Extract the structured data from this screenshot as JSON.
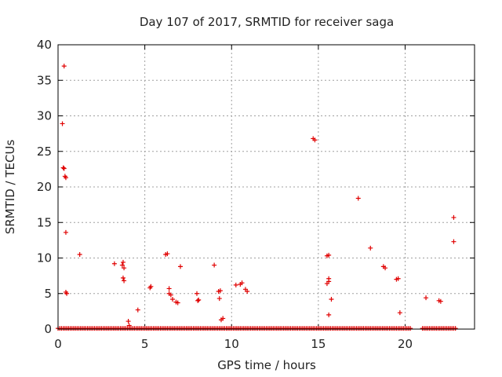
{
  "chart_data": {
    "type": "scatter",
    "title": "Day 107 of 2017, SRMTID for receiver saga",
    "xlabel": "GPS time / hours",
    "ylabel": "SRMTID / TECUs",
    "xlim": [
      0,
      24
    ],
    "ylim": [
      0,
      40
    ],
    "x_ticks": [
      0,
      5,
      10,
      15,
      20
    ],
    "y_ticks": [
      0,
      5,
      10,
      15,
      20,
      25,
      30,
      35,
      40
    ],
    "grid": true,
    "marker": "+",
    "color": "#e00000",
    "series": [
      {
        "name": "SRMTID",
        "points": [
          [
            0.25,
            28.9
          ],
          [
            0.35,
            37.0
          ],
          [
            0.3,
            22.7
          ],
          [
            0.35,
            22.6
          ],
          [
            0.4,
            21.5
          ],
          [
            0.45,
            21.3
          ],
          [
            0.45,
            13.6
          ],
          [
            0.45,
            5.2
          ],
          [
            0.5,
            5.0
          ],
          [
            1.25,
            10.5
          ],
          [
            3.25,
            9.2
          ],
          [
            3.75,
            9.4
          ],
          [
            3.7,
            9.0
          ],
          [
            3.8,
            8.6
          ],
          [
            3.75,
            7.2
          ],
          [
            3.8,
            6.8
          ],
          [
            4.05,
            1.1
          ],
          [
            4.1,
            0.5
          ],
          [
            4.6,
            2.7
          ],
          [
            5.3,
            5.8
          ],
          [
            5.35,
            6.0
          ],
          [
            6.2,
            10.5
          ],
          [
            6.3,
            10.6
          ],
          [
            6.4,
            5.7
          ],
          [
            6.4,
            5.0
          ],
          [
            6.5,
            4.8
          ],
          [
            6.6,
            4.2
          ],
          [
            6.8,
            3.8
          ],
          [
            6.9,
            3.7
          ],
          [
            7.05,
            8.8
          ],
          [
            8.0,
            5.0
          ],
          [
            8.05,
            4.0
          ],
          [
            8.1,
            4.1
          ],
          [
            9.0,
            9.0
          ],
          [
            9.25,
            5.3
          ],
          [
            9.35,
            5.4
          ],
          [
            9.3,
            4.3
          ],
          [
            9.4,
            1.3
          ],
          [
            9.5,
            1.5
          ],
          [
            10.25,
            6.2
          ],
          [
            10.5,
            6.3
          ],
          [
            10.6,
            6.5
          ],
          [
            10.8,
            5.6
          ],
          [
            10.9,
            5.3
          ],
          [
            14.7,
            26.8
          ],
          [
            14.8,
            26.6
          ],
          [
            15.5,
            10.3
          ],
          [
            15.6,
            10.4
          ],
          [
            15.5,
            6.4
          ],
          [
            15.6,
            6.7
          ],
          [
            15.6,
            7.1
          ],
          [
            15.6,
            2.0
          ],
          [
            15.75,
            4.2
          ],
          [
            17.3,
            18.4
          ],
          [
            18.0,
            11.4
          ],
          [
            18.75,
            8.8
          ],
          [
            18.85,
            8.6
          ],
          [
            19.5,
            7.0
          ],
          [
            19.6,
            7.1
          ],
          [
            19.7,
            2.3
          ],
          [
            21.2,
            4.4
          ],
          [
            21.95,
            4.0
          ],
          [
            22.05,
            3.9
          ],
          [
            22.8,
            15.7
          ],
          [
            22.8,
            12.3
          ]
        ],
        "baseline_segments": [
          [
            0.0,
            9.5
          ],
          [
            9.6,
            20.3
          ],
          [
            21.0,
            22.9
          ]
        ],
        "baseline_value": 0.1
      }
    ]
  }
}
